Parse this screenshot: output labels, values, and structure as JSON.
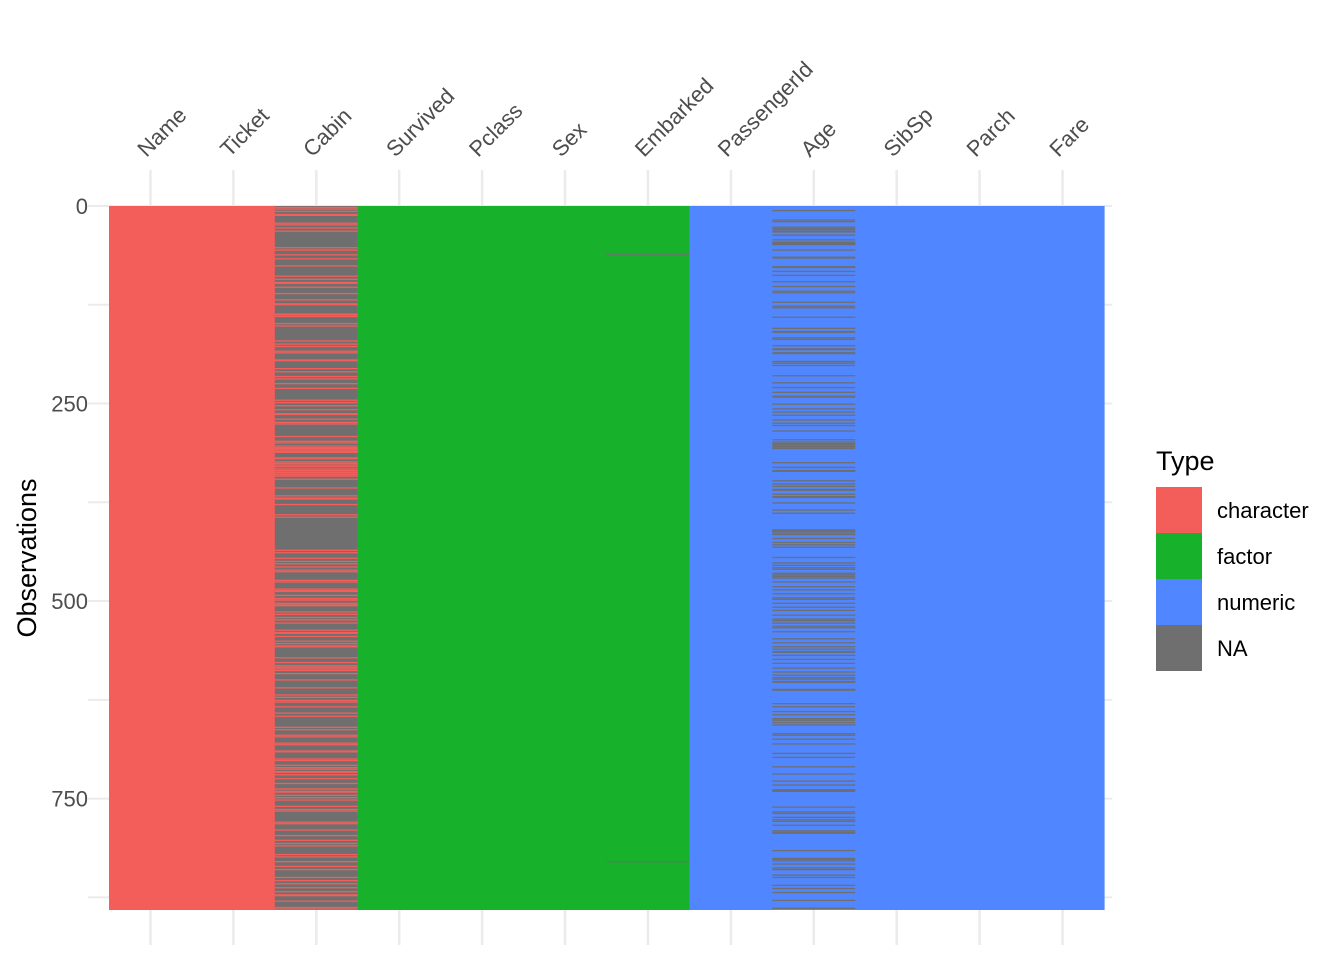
{
  "chart_data": {
    "type": "heatmap",
    "title": "",
    "xlabel": "",
    "ylabel": "Observations",
    "rows": 891,
    "ylim": [
      0,
      891
    ],
    "y_ticks": [
      0,
      250,
      500,
      750
    ],
    "grid": true,
    "x_axis_position": "top",
    "legend_position": "right",
    "columns": [
      {
        "name": "Name",
        "type": "character"
      },
      {
        "name": "Ticket",
        "type": "character"
      },
      {
        "name": "Cabin",
        "type": "character"
      },
      {
        "name": "Survived",
        "type": "factor"
      },
      {
        "name": "Pclass",
        "type": "factor"
      },
      {
        "name": "Sex",
        "type": "factor"
      },
      {
        "name": "Embarked",
        "type": "factor"
      },
      {
        "name": "PassengerId",
        "type": "numeric"
      },
      {
        "name": "Age",
        "type": "numeric"
      },
      {
        "name": "SibSp",
        "type": "numeric"
      },
      {
        "name": "Parch",
        "type": "numeric"
      },
      {
        "name": "Fare",
        "type": "numeric"
      }
    ],
    "missing": {
      "Embarked": [
        62,
        830
      ],
      "Age": [
        6,
        18,
        20,
        27,
        29,
        30,
        32,
        33,
        37,
        43,
        46,
        47,
        48,
        49,
        56,
        65,
        66,
        77,
        78,
        83,
        88,
        96,
        102,
        108,
        110,
        122,
        127,
        129,
        141,
        155,
        159,
        160,
        167,
        169,
        177,
        181,
        182,
        186,
        187,
        197,
        199,
        202,
        215,
        224,
        230,
        236,
        241,
        242,
        251,
        257,
        261,
        265,
        271,
        275,
        278,
        285,
        296,
        299,
        301,
        302,
        304,
        305,
        307,
        325,
        331,
        335,
        336,
        348,
        352,
        355,
        359,
        360,
        365,
        368,
        369,
        376,
        385,
        389,
        410,
        411,
        412,
        414,
        416,
        421,
        426,
        429,
        432,
        445,
        452,
        455,
        458,
        460,
        465,
        467,
        469,
        471,
        476,
        482,
        486,
        491,
        496,
        498,
        503,
        508,
        512,
        518,
        523,
        525,
        528,
        532,
        534,
        539,
        548,
        553,
        558,
        561,
        564,
        565,
        569,
        574,
        579,
        585,
        590,
        594,
        597,
        599,
        602,
        603,
        612,
        613,
        630,
        634,
        640,
        644,
        649,
        651,
        654,
        657,
        668,
        670,
        675,
        681,
        693,
        698,
        710,
        719,
        728,
        733,
        739,
        740,
        741,
        761,
        767,
        769,
        774,
        777,
        779,
        784,
        791,
        793,
        794,
        816,
        826,
        827,
        829,
        833,
        838,
        840,
        847,
        850,
        860,
        864,
        869,
        879,
        889
      ]
    },
    "cabin_present": [
      2,
      4,
      7,
      11,
      12,
      22,
      24,
      28,
      32,
      53,
      56,
      62,
      67,
      76,
      89,
      93,
      97,
      98,
      103,
      111,
      119,
      124,
      125,
      137,
      138,
      140,
      149,
      152,
      171,
      175,
      178,
      184,
      186,
      195,
      196,
      206,
      210,
      216,
      219,
      225,
      231,
      246,
      249,
      253,
      258,
      263,
      264,
      270,
      274,
      276,
      292,
      298,
      300,
      304,
      306,
      307,
      308,
      310,
      311,
      312,
      319,
      320,
      324,
      326,
      328,
      330,
      333,
      335,
      337,
      338,
      340,
      342,
      346,
      357,
      367,
      370,
      371,
      378,
      391,
      394,
      436,
      439,
      446,
      450,
      453,
      457,
      461,
      463,
      474,
      476,
      485,
      487,
      488,
      493,
      497,
      499,
      503,
      505,
      506,
      514,
      517,
      521,
      524,
      528,
      537,
      540,
      541,
      545,
      551,
      554,
      557,
      558,
      572,
      578,
      582,
      584,
      586,
      588,
      592,
      600,
      610,
      619,
      622,
      626,
      628,
      634,
      642,
      646,
      660,
      663,
      670,
      672,
      680,
      682,
      690,
      691,
      700,
      702,
      708,
      711,
      713,
      716,
      717,
      720,
      725,
      731,
      738,
      741,
      742,
      746,
      749,
      752,
      760,
      764,
      766,
      780,
      782,
      790,
      797,
      803,
      807,
      810,
      821,
      824,
      830,
      836,
      840,
      850,
      854,
      858,
      863,
      868,
      872,
      873,
      880,
      888,
      890
    ]
  },
  "legend": {
    "title": "Type",
    "items": [
      {
        "label": "character",
        "color": "#F35E5A"
      },
      {
        "label": "factor",
        "color": "#17B12B"
      },
      {
        "label": "numeric",
        "color": "#5086FF"
      },
      {
        "label": "NA",
        "color": "#6F6F6F"
      }
    ]
  },
  "colors": {
    "grid": "#ebebeb",
    "tick_text": "#4d4d4d"
  }
}
